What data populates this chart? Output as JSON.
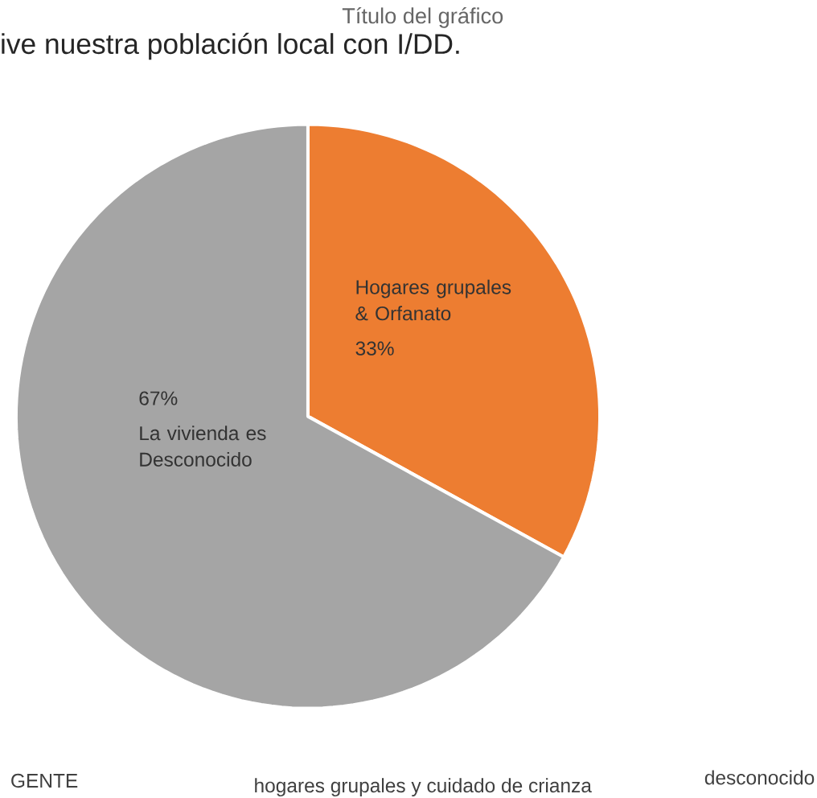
{
  "chart_data": {
    "type": "pie",
    "title": "Título del gráfico",
    "subtitle": "ive nuestra población local con I/DD.",
    "categories": [
      "Hogares grupales & Orfanato",
      "La vivienda es Desconocido"
    ],
    "values": [
      33,
      67
    ],
    "colors": [
      "#ed7d31",
      "#a5a5a5"
    ],
    "value_labels": [
      "33%",
      "67%"
    ],
    "annotations": [
      "GENTE",
      "hogares grupales y cuidado de crianza",
      "desconocido"
    ]
  }
}
